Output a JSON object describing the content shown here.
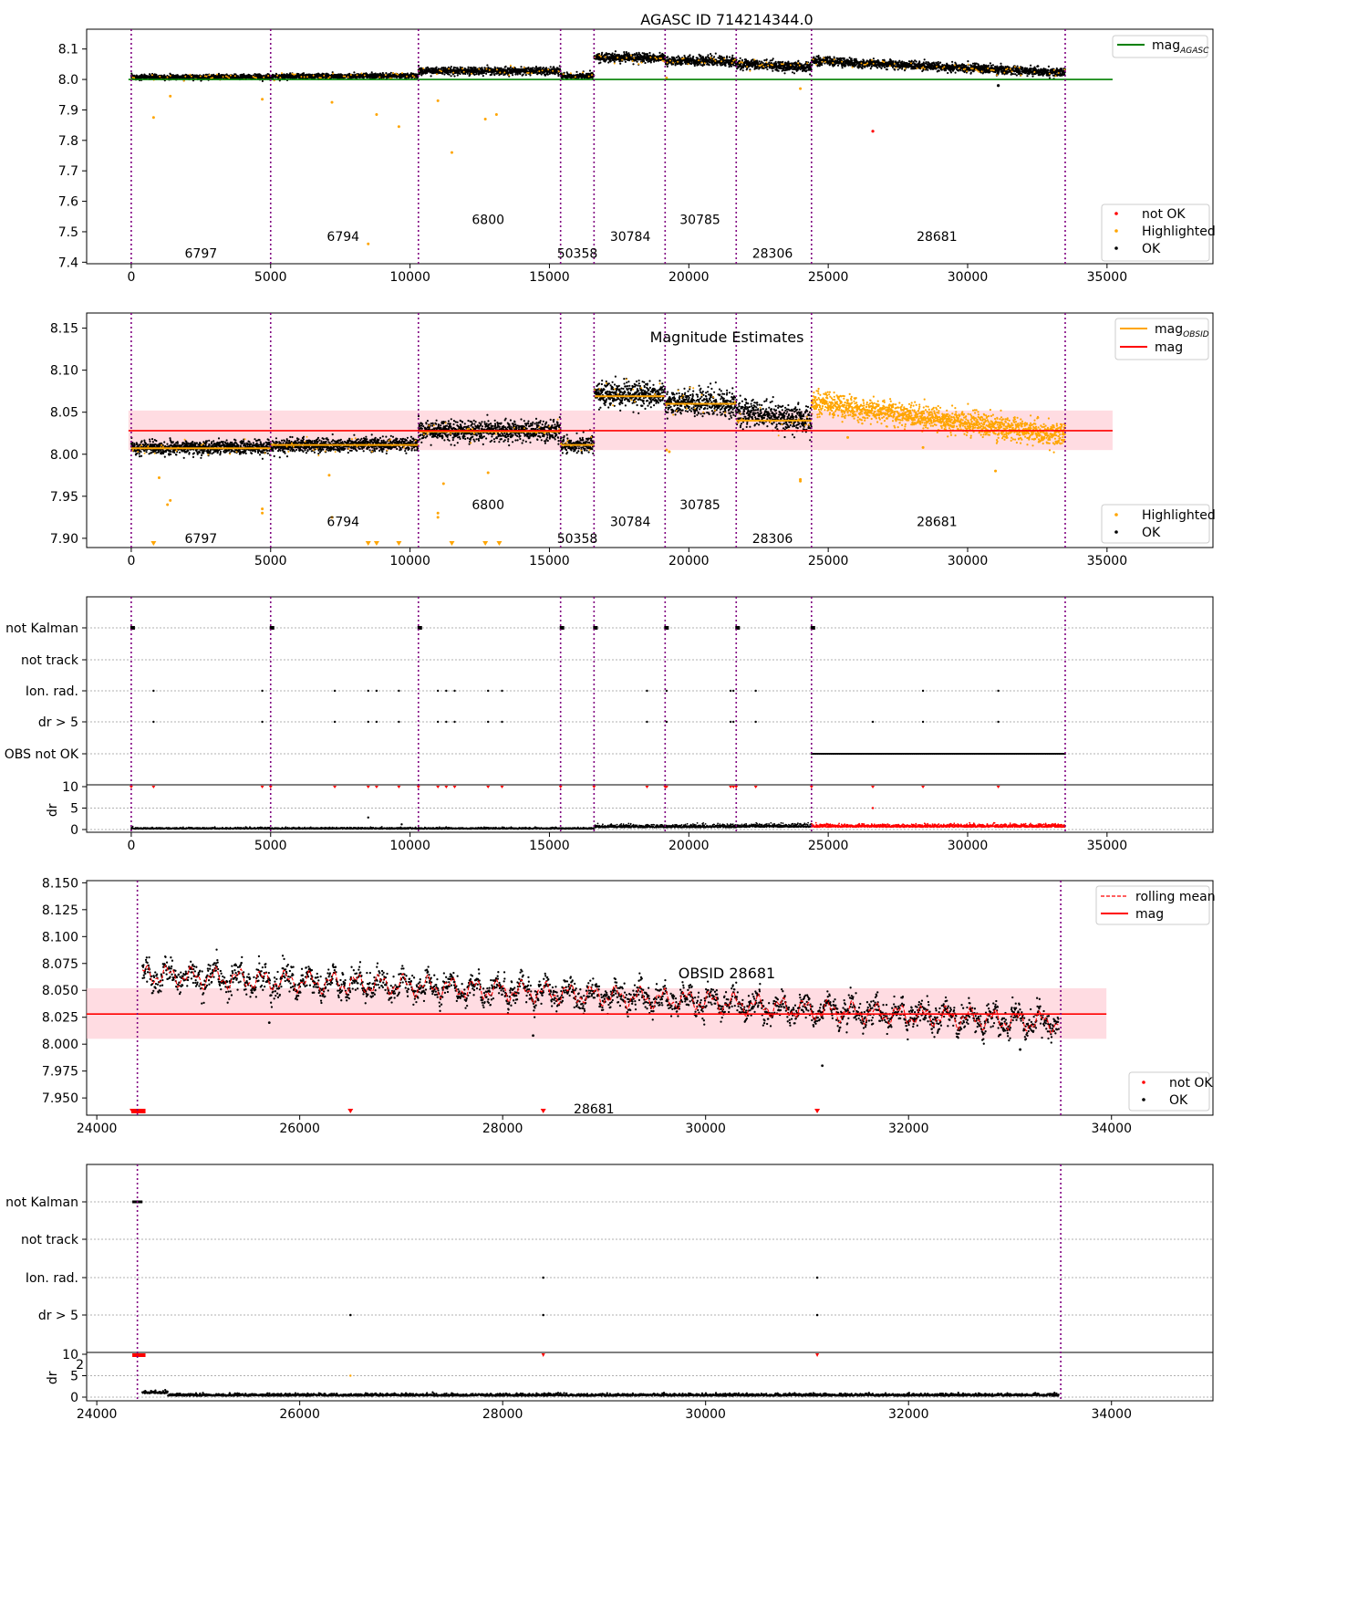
{
  "figure": {
    "panel1_title": "AGASC ID 714214344.0",
    "panel2_title": "Magnitude Estimates",
    "panel4_title": "OBSID 28681"
  },
  "colors": {
    "ok": "#000000",
    "highlighted": "#ffa500",
    "not_ok": "#ff0000",
    "mag_agasc": "#008000",
    "mag": "#ff0000",
    "mag_obsid": "#ffa500",
    "band": "#ffc0cb",
    "boundary": "#800080"
  },
  "chart_data": [
    {
      "type": "scatter",
      "title": "AGASC ID 714214344.0",
      "xlim": [
        -1600,
        38800
      ],
      "ylim": [
        7.395,
        8.165
      ],
      "xticks": [
        0,
        5000,
        10000,
        15000,
        20000,
        25000,
        30000,
        35000
      ],
      "yticks": [
        7.4,
        7.5,
        7.6,
        7.7,
        7.8,
        7.9,
        8.0,
        8.1
      ],
      "obsid_boundaries": [
        0,
        5000,
        10300,
        15400,
        16600,
        19150,
        21700,
        24400,
        33500
      ],
      "obsid_labels": [
        {
          "text": "6797",
          "x": 2500,
          "y": 7.43
        },
        {
          "text": "6794",
          "x": 7600,
          "y": 7.485
        },
        {
          "text": "6800",
          "x": 12800,
          "y": 7.54
        },
        {
          "text": "50358",
          "x": 16000,
          "y": 7.43
        },
        {
          "text": "30784",
          "x": 17900,
          "y": 7.485
        },
        {
          "text": "30785",
          "x": 20400,
          "y": 7.54
        },
        {
          "text": "28306",
          "x": 23000,
          "y": 7.43
        },
        {
          "text": "28681",
          "x": 28900,
          "y": 7.485
        }
      ],
      "segments_mag": [
        {
          "x0": 0,
          "x1": 5000,
          "mag": 8.008,
          "end": 8.008
        },
        {
          "x0": 5000,
          "x1": 10300,
          "mag": 8.01,
          "end": 8.012
        },
        {
          "x0": 10300,
          "x1": 15400,
          "mag": 8.028,
          "end": 8.028
        },
        {
          "x0": 15400,
          "x1": 16600,
          "mag": 8.012,
          "end": 8.012
        },
        {
          "x0": 16600,
          "x1": 19150,
          "mag": 8.072,
          "end": 8.07
        },
        {
          "x0": 19150,
          "x1": 21700,
          "mag": 8.062,
          "end": 8.06
        },
        {
          "x0": 21700,
          "x1": 24400,
          "mag": 8.05,
          "end": 8.04
        },
        {
          "x0": 24400,
          "x1": 33500,
          "mag": 8.062,
          "end": 8.022
        }
      ],
      "hline": {
        "name": "mag_AGASC",
        "y": 8.0,
        "x0": -100,
        "x1": 35200
      },
      "highlighted_points": [
        [
          800,
          7.875
        ],
        [
          1400,
          7.945
        ],
        [
          4700,
          7.935
        ],
        [
          7200,
          7.925
        ],
        [
          8500,
          7.46
        ],
        [
          8800,
          7.885
        ],
        [
          9600,
          7.845
        ],
        [
          11000,
          7.93
        ],
        [
          11500,
          7.76
        ],
        [
          12700,
          7.87
        ],
        [
          13100,
          7.885
        ],
        [
          19200,
          8.005
        ],
        [
          24000,
          7.97
        ]
      ],
      "not_ok_points": [
        [
          26600,
          7.83
        ],
        [
          31100,
          7.98
        ]
      ],
      "legend_lines": [
        {
          "name": "mag",
          "sub": "AGASC"
        }
      ],
      "legend_points": [
        "not OK",
        "Highlighted",
        "OK"
      ]
    },
    {
      "type": "scatter",
      "title": "Magnitude Estimates",
      "xlim": [
        -1600,
        38800
      ],
      "ylim": [
        7.889,
        8.168
      ],
      "xticks": [
        0,
        5000,
        10000,
        15000,
        20000,
        25000,
        30000,
        35000
      ],
      "yticks": [
        7.9,
        7.95,
        8.0,
        8.05,
        8.1,
        8.15
      ],
      "obsid_labels": [
        {
          "text": "6797",
          "x": 2500,
          "y": 7.9
        },
        {
          "text": "6794",
          "x": 7600,
          "y": 7.92
        },
        {
          "text": "6800",
          "x": 12800,
          "y": 7.94
        },
        {
          "text": "50358",
          "x": 16000,
          "y": 7.9
        },
        {
          "text": "30784",
          "x": 17900,
          "y": 7.92
        },
        {
          "text": "30785",
          "x": 20400,
          "y": 7.94
        },
        {
          "text": "28306",
          "x": 23000,
          "y": 7.9
        },
        {
          "text": "28681",
          "x": 28900,
          "y": 7.92
        }
      ],
      "mag": 8.028,
      "mag_band": [
        8.005,
        8.052
      ],
      "mag_obsid": [
        8.007,
        8.011,
        8.027,
        8.011,
        8.069,
        8.06,
        8.04
      ],
      "outliers_low": [
        800,
        8500,
        8800,
        9600,
        11500,
        12700,
        13200
      ],
      "legend_lines": [
        {
          "name": "mag",
          "sub": "OBSID"
        },
        {
          "name": "mag"
        }
      ],
      "legend_points": [
        "Highlighted",
        "OK"
      ]
    },
    {
      "type": "scatter",
      "title": "",
      "flag_categories": [
        "not Kalman",
        "not track",
        "Ion. rad.",
        "dr > 5",
        "OBS not OK"
      ],
      "not_kalman_x": [
        0,
        5000,
        10300,
        15400,
        16600,
        19150,
        21700,
        24400
      ],
      "ion_rad_x": [
        800,
        4700,
        7300,
        8500,
        8800,
        9600,
        11000,
        11300,
        11600,
        12800,
        13300,
        18500,
        19200,
        21500,
        21600,
        22400,
        28400,
        31100
      ],
      "dr5_x": [
        800,
        4700,
        7300,
        8500,
        8800,
        9600,
        11000,
        11300,
        11600,
        12800,
        13300,
        18500,
        19200,
        21500,
        21600,
        22400,
        26600,
        28400,
        31100
      ],
      "obs_not_ok_range": [
        24400,
        33500
      ],
      "dr_ylabel": "dr",
      "dr_yticks": [
        0,
        5,
        10
      ],
      "dr_outliers": [
        [
          8500,
          2.8
        ],
        [
          9700,
          1.2
        ],
        [
          26600,
          5.0
        ]
      ]
    },
    {
      "type": "line",
      "title": "OBSID 28681",
      "xlim": [
        23900,
        35000
      ],
      "ylim": [
        7.934,
        8.152
      ],
      "xticks": [
        24000,
        26000,
        28000,
        30000,
        32000,
        34000
      ],
      "yticks": [
        7.95,
        7.975,
        8.0,
        8.025,
        8.05,
        8.075,
        8.1,
        8.125,
        8.15
      ],
      "obsid_label": {
        "text": "28681",
        "x": 28900,
        "y": 7.94
      },
      "rolling_mean_profile": [
        [
          24500,
          8.065
        ],
        [
          25000,
          8.062
        ],
        [
          26000,
          8.058
        ],
        [
          27000,
          8.055
        ],
        [
          28000,
          8.05
        ],
        [
          29000,
          8.045
        ],
        [
          30000,
          8.04
        ],
        [
          31000,
          8.032
        ],
        [
          32000,
          8.027
        ],
        [
          33000,
          8.022
        ],
        [
          33450,
          8.02
        ]
      ],
      "mag": 8.028,
      "mag_band": [
        8.005,
        8.052
      ],
      "outliers": [
        [
          25700,
          8.02
        ],
        [
          28300,
          8.008
        ],
        [
          31150,
          7.98
        ],
        [
          33100,
          7.995
        ]
      ],
      "not_ok_markers_x": [
        24350,
        24400,
        26500,
        28400,
        31100
      ],
      "legend_lines": [
        {
          "name": "rolling mean"
        },
        {
          "name": "mag"
        }
      ],
      "legend_points": [
        "not OK",
        "OK"
      ]
    },
    {
      "type": "scatter",
      "title": "",
      "xlim": [
        23900,
        35000
      ],
      "xticks": [
        24000,
        26000,
        28000,
        30000,
        32000,
        34000
      ],
      "flag_categories": [
        "not Kalman",
        "not track",
        "Ion. rad.",
        "dr > 5"
      ],
      "not_kalman_range": [
        24350,
        24450
      ],
      "ion_rad_x": [
        28400,
        31100
      ],
      "dr5_x": [
        26500,
        28400,
        31100
      ],
      "dr_ylabel": "dr",
      "dr_yticks": [
        0,
        5,
        10
      ],
      "dr_outliers": [
        [
          26500,
          5.0
        ]
      ],
      "dr_hidden_ticklabel": "2"
    }
  ]
}
